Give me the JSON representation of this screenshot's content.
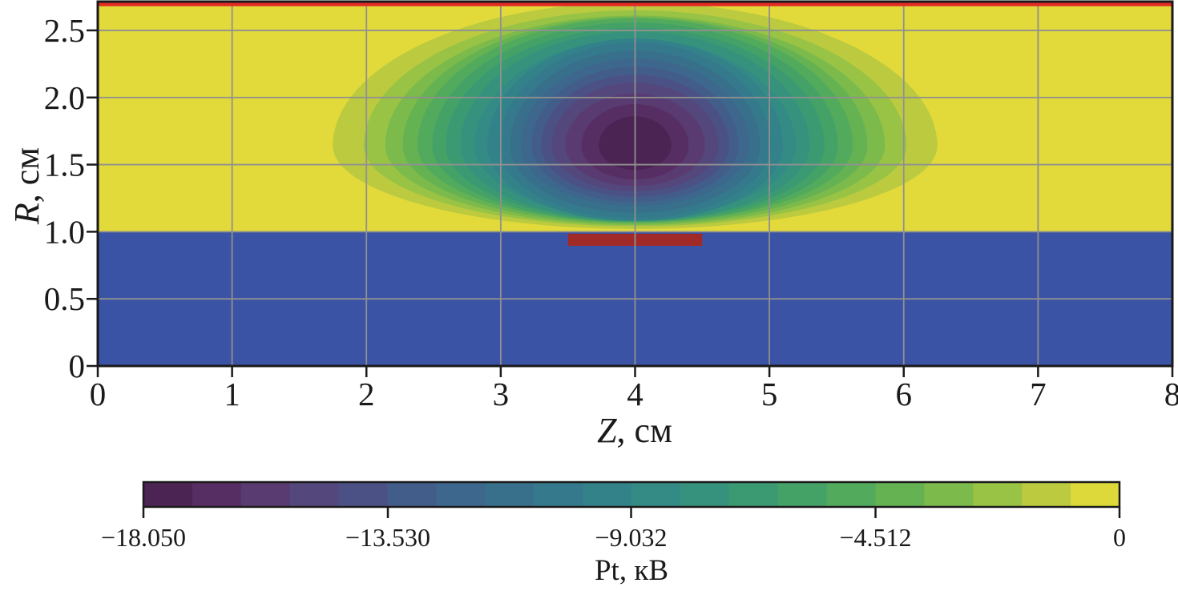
{
  "chart_data": {
    "type": "heatmap",
    "subtype": "filled-contour (axisymmetric plasma potential map)",
    "title": "",
    "x": {
      "label_var": "Z",
      "label_rest": ", см",
      "min": 0,
      "max": 8,
      "ticks": [
        0,
        1,
        2,
        3,
        4,
        5,
        6,
        7,
        8
      ],
      "tick_labels": [
        "0",
        "1",
        "2",
        "3",
        "4",
        "5",
        "6",
        "7",
        "8"
      ]
    },
    "y": {
      "label_var": "R",
      "label_rest": ", см",
      "min": 0,
      "max": 2.714,
      "ticks": [
        0,
        0.5,
        1.0,
        1.5,
        2.0,
        2.5
      ],
      "tick_labels": [
        "0",
        "0.5",
        "1.0",
        "1.5",
        "2.0",
        "2.5"
      ]
    },
    "grid": {
      "on": true,
      "color": "#909090"
    },
    "colorbar": {
      "label": "Pt, кВ",
      "min": -18.05,
      "max": 0,
      "n_bands": 20,
      "ticks": [
        {
          "value": -18.05,
          "label": "−18.050"
        },
        {
          "value": -13.53,
          "label": "−13.530"
        },
        {
          "value": -9.032,
          "label": "−9.032"
        },
        {
          "value": -4.512,
          "label": "−4.512"
        },
        {
          "value": 0,
          "label": "0"
        }
      ],
      "colors": [
        "#4c2454",
        "#562e63",
        "#593b71",
        "#54477c",
        "#4b5185",
        "#435d8a",
        "#3d678c",
        "#38708c",
        "#35798c",
        "#33828a",
        "#348a85",
        "#37927d",
        "#3c9a72",
        "#45a267",
        "#52aa5d",
        "#65b253",
        "#7cba4b",
        "#98c345",
        "#bcca40",
        "#ded93a"
      ]
    },
    "field": {
      "background_value": 0,
      "background_color": "#e1da3a",
      "well": {
        "center_z": 4.0,
        "center_r": 1.64,
        "min_value": -18.05,
        "contour_levels": [
          -0.9,
          -1.81,
          -2.71,
          -3.61,
          -4.51,
          -5.42,
          -6.32,
          -7.22,
          -8.12,
          -9.03,
          -9.93,
          -10.83,
          -11.73,
          -12.64,
          -13.54,
          -14.44,
          -15.34,
          -16.24,
          -17.15
        ],
        "semi_axis_z": [
          2.25,
          2.02,
          1.86,
          1.73,
          1.62,
          1.51,
          1.41,
          1.3,
          1.2,
          1.1,
          1.01,
          0.93,
          0.85,
          0.77,
          0.7,
          0.62,
          0.52,
          0.4,
          0.27
        ],
        "semi_axis_r_up": [
          1.07,
          1.01,
          0.97,
          0.96,
          0.95,
          0.92,
          0.88,
          0.85,
          0.82,
          0.8,
          0.77,
          0.71,
          0.65,
          0.59,
          0.53,
          0.47,
          0.39,
          0.31,
          0.22
        ],
        "semi_axis_r_dn": [
          0.62,
          0.6,
          0.59,
          0.58,
          0.57,
          0.57,
          0.56,
          0.56,
          0.56,
          0.56,
          0.54,
          0.5,
          0.45,
          0.42,
          0.38,
          0.34,
          0.3,
          0.25,
          0.18
        ]
      },
      "regions": [
        {
          "name": "lower-region",
          "color": "#3a53a4",
          "z": [
            0,
            8
          ],
          "r": [
            0,
            1.0
          ]
        },
        {
          "name": "electrode-bar",
          "color": "#a02a28",
          "z": [
            3.5,
            4.5
          ],
          "r": [
            0.895,
            0.985
          ]
        },
        {
          "name": "top-wall-strip",
          "color": "#e12b24",
          "z": [
            0,
            8
          ],
          "r": [
            2.68,
            2.714
          ]
        }
      ]
    },
    "spine_color": "#1a1a1a"
  }
}
